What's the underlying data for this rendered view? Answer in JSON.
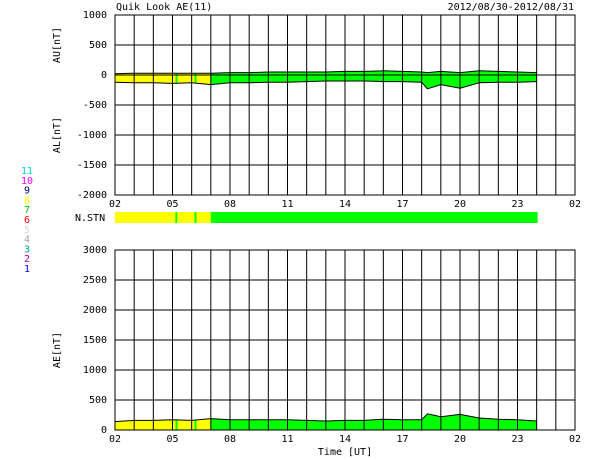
{
  "header": {
    "title": "Quik Look AE(11)",
    "date_range": "2012/08/30-2012/08/31"
  },
  "station_legend": [
    {
      "label": "11",
      "color": "#00d0d0"
    },
    {
      "label": "10",
      "color": "#ff00ff"
    },
    {
      "label": "9",
      "color": "#000080"
    },
    {
      "label": "8",
      "color": "#ffff00"
    },
    {
      "label": "7",
      "color": "#00c000"
    },
    {
      "label": "6",
      "color": "#ff0000"
    },
    {
      "label": "5",
      "color": "#d8d8d8"
    },
    {
      "label": "4",
      "color": "#a0a0a0"
    },
    {
      "label": "3",
      "color": "#00a0a0"
    },
    {
      "label": "2",
      "color": "#a000a0"
    },
    {
      "label": "1",
      "color": "#0000ff"
    }
  ],
  "n_stn": {
    "label": "N.STN",
    "segments": [
      {
        "from": 2,
        "to": 5.15,
        "color": "#ffff00"
      },
      {
        "from": 5.15,
        "to": 5.25,
        "color": "#00ff00"
      },
      {
        "from": 5.25,
        "to": 6.15,
        "color": "#ffff00"
      },
      {
        "from": 6.15,
        "to": 6.25,
        "color": "#00ff00"
      },
      {
        "from": 6.25,
        "to": 7,
        "color": "#ffff00"
      },
      {
        "from": 7,
        "to": 24.05,
        "color": "#00ff00"
      }
    ]
  },
  "chart_data": [
    {
      "type": "line",
      "ylabel": [
        "AU[nT]",
        "AL[nT]"
      ],
      "x": [
        2,
        3,
        4,
        5,
        6,
        7,
        8,
        9,
        10,
        11,
        12,
        13,
        14,
        15,
        16,
        17,
        18,
        18.3,
        19,
        20,
        21,
        22,
        23,
        24
      ],
      "series": [
        {
          "name": "AU",
          "color": "#000000",
          "values": [
            20,
            30,
            30,
            30,
            30,
            30,
            40,
            40,
            50,
            50,
            50,
            50,
            60,
            60,
            70,
            60,
            50,
            40,
            60,
            40,
            70,
            60,
            50,
            40
          ]
        },
        {
          "name": "AL",
          "color": "#000000",
          "values": [
            -120,
            -130,
            -130,
            -140,
            -130,
            -160,
            -130,
            -130,
            -120,
            -120,
            -110,
            -100,
            -100,
            -100,
            -110,
            -110,
            -120,
            -230,
            -160,
            -220,
            -130,
            -120,
            -120,
            -110
          ]
        }
      ],
      "xlim": [
        2,
        26
      ],
      "ylim": [
        -2000,
        1000
      ],
      "xticks": [
        {
          "value": 2,
          "label": "02"
        },
        {
          "value": 5,
          "label": "05"
        },
        {
          "value": 8,
          "label": "08"
        },
        11,
        14,
        17,
        20,
        23,
        {
          "value": 26,
          "label": "02"
        }
      ],
      "xgrid": [
        3,
        4,
        6,
        7,
        9,
        10,
        12,
        13,
        15,
        16,
        18,
        19,
        21,
        22,
        24,
        25
      ],
      "yticks": [
        1000,
        500,
        0,
        -500,
        -1000,
        -1500,
        -2000
      ]
    },
    {
      "type": "line",
      "ylabel": [
        "AE[nT]"
      ],
      "xlabel": "Time [UT]",
      "x": [
        2,
        3,
        4,
        5,
        6,
        7,
        8,
        9,
        10,
        11,
        12,
        13,
        14,
        15,
        16,
        17,
        18,
        18.3,
        19,
        20,
        21,
        22,
        23,
        24
      ],
      "series": [
        {
          "name": "AE",
          "color": "#000000",
          "values": [
            140,
            160,
            160,
            170,
            160,
            190,
            170,
            170,
            170,
            170,
            160,
            150,
            160,
            160,
            180,
            170,
            170,
            270,
            220,
            260,
            200,
            180,
            170,
            150
          ]
        }
      ],
      "xlim": [
        2,
        26
      ],
      "ylim": [
        0,
        3000
      ],
      "xticks": [
        {
          "value": 2,
          "label": "02"
        },
        {
          "value": 5,
          "label": "05"
        },
        {
          "value": 8,
          "label": "08"
        },
        11,
        14,
        17,
        20,
        23,
        {
          "value": 26,
          "label": "02"
        }
      ],
      "xgrid": [
        3,
        4,
        6,
        7,
        9,
        10,
        12,
        13,
        15,
        16,
        18,
        19,
        21,
        22,
        24,
        25
      ],
      "yticks": [
        0,
        500,
        1000,
        1500,
        2000,
        2500,
        3000
      ]
    }
  ]
}
